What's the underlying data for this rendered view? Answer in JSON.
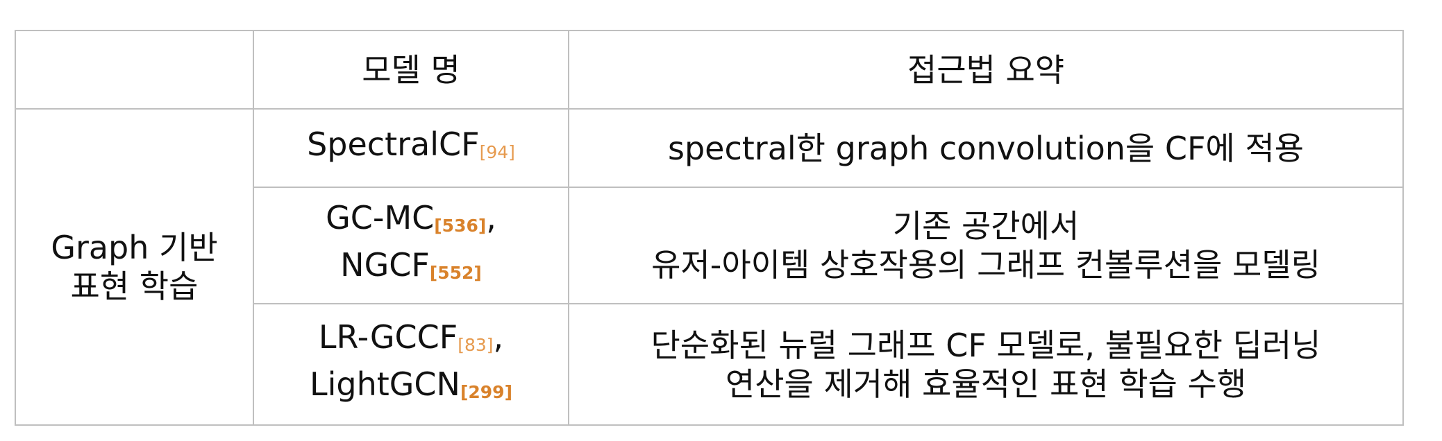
{
  "header": {
    "col1": "",
    "col2": "모델 명",
    "col3": "접근법 요약"
  },
  "category": {
    "line1": "Graph 기반",
    "line2": "표현 학습"
  },
  "rows": [
    {
      "models": [
        {
          "name": "SpectralCF",
          "ref": "[94]",
          "suffix": ""
        }
      ],
      "summary": [
        "spectral한 graph convolution을 CF에 적용"
      ]
    },
    {
      "models": [
        {
          "name": "GC-MC",
          "ref": "[536]",
          "suffix": ","
        },
        {
          "name": "NGCF",
          "ref": "[552]",
          "suffix": ""
        }
      ],
      "summary": [
        "기존 공간에서",
        "유저-아이템 상호작용의 그래프 컨볼루션을 모델링"
      ]
    },
    {
      "models": [
        {
          "name": "LR-GCCF",
          "ref": "[83]",
          "suffix": ","
        },
        {
          "name": "LightGCN",
          "ref": "[299]",
          "suffix": ""
        }
      ],
      "summary": [
        "단순화된 뉴럴 그래프 CF 모델로, 불필요한 딥러닝",
        "연산을 제거해 효율적인 표현 학습 수행"
      ]
    }
  ]
}
